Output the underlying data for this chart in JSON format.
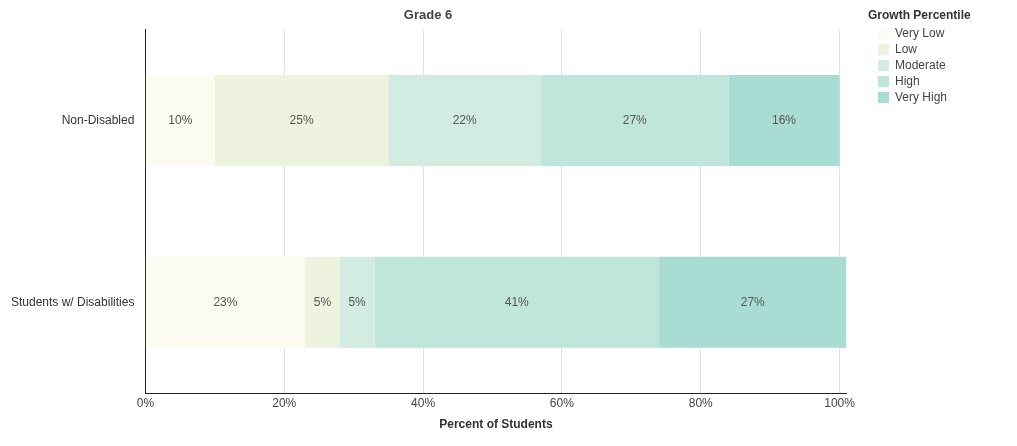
{
  "chart_data": {
    "type": "bar",
    "orientation": "horizontal",
    "stacked": true,
    "title": "Grade 6",
    "xlabel": "Percent of Students",
    "legend_title": "Growth Percentile",
    "legend": "top right",
    "grid": "x",
    "categories": [
      "Non-Disabled",
      "Students w/ Disabilities"
    ],
    "xlim": [
      0,
      101
    ],
    "xticks": [
      {
        "value": 0,
        "label": "0%"
      },
      {
        "value": 20,
        "label": "20%"
      },
      {
        "value": 40,
        "label": "40%"
      },
      {
        "value": 60,
        "label": "60%"
      },
      {
        "value": 80,
        "label": "80%"
      },
      {
        "value": 100,
        "label": "100%"
      }
    ],
    "series": [
      {
        "name": "Very Low",
        "color": "#fbfbf0",
        "values": [
          10,
          23
        ],
        "value_labels": [
          "10%",
          "23%"
        ]
      },
      {
        "name": "Low",
        "color": "#eef3e0",
        "values": [
          25,
          5
        ],
        "value_labels": [
          "25%",
          "5%"
        ]
      },
      {
        "name": "Moderate",
        "color": "#d2ece2",
        "values": [
          22,
          5
        ],
        "value_labels": [
          "22%",
          "5%"
        ]
      },
      {
        "name": "High",
        "color": "#c0e6dc",
        "values": [
          27,
          41
        ],
        "value_labels": [
          "27%",
          "41%"
        ]
      },
      {
        "name": "Very High",
        "color": "#a9dcd2",
        "values": [
          16,
          27
        ],
        "value_labels": [
          "16%",
          "27%"
        ]
      }
    ]
  }
}
